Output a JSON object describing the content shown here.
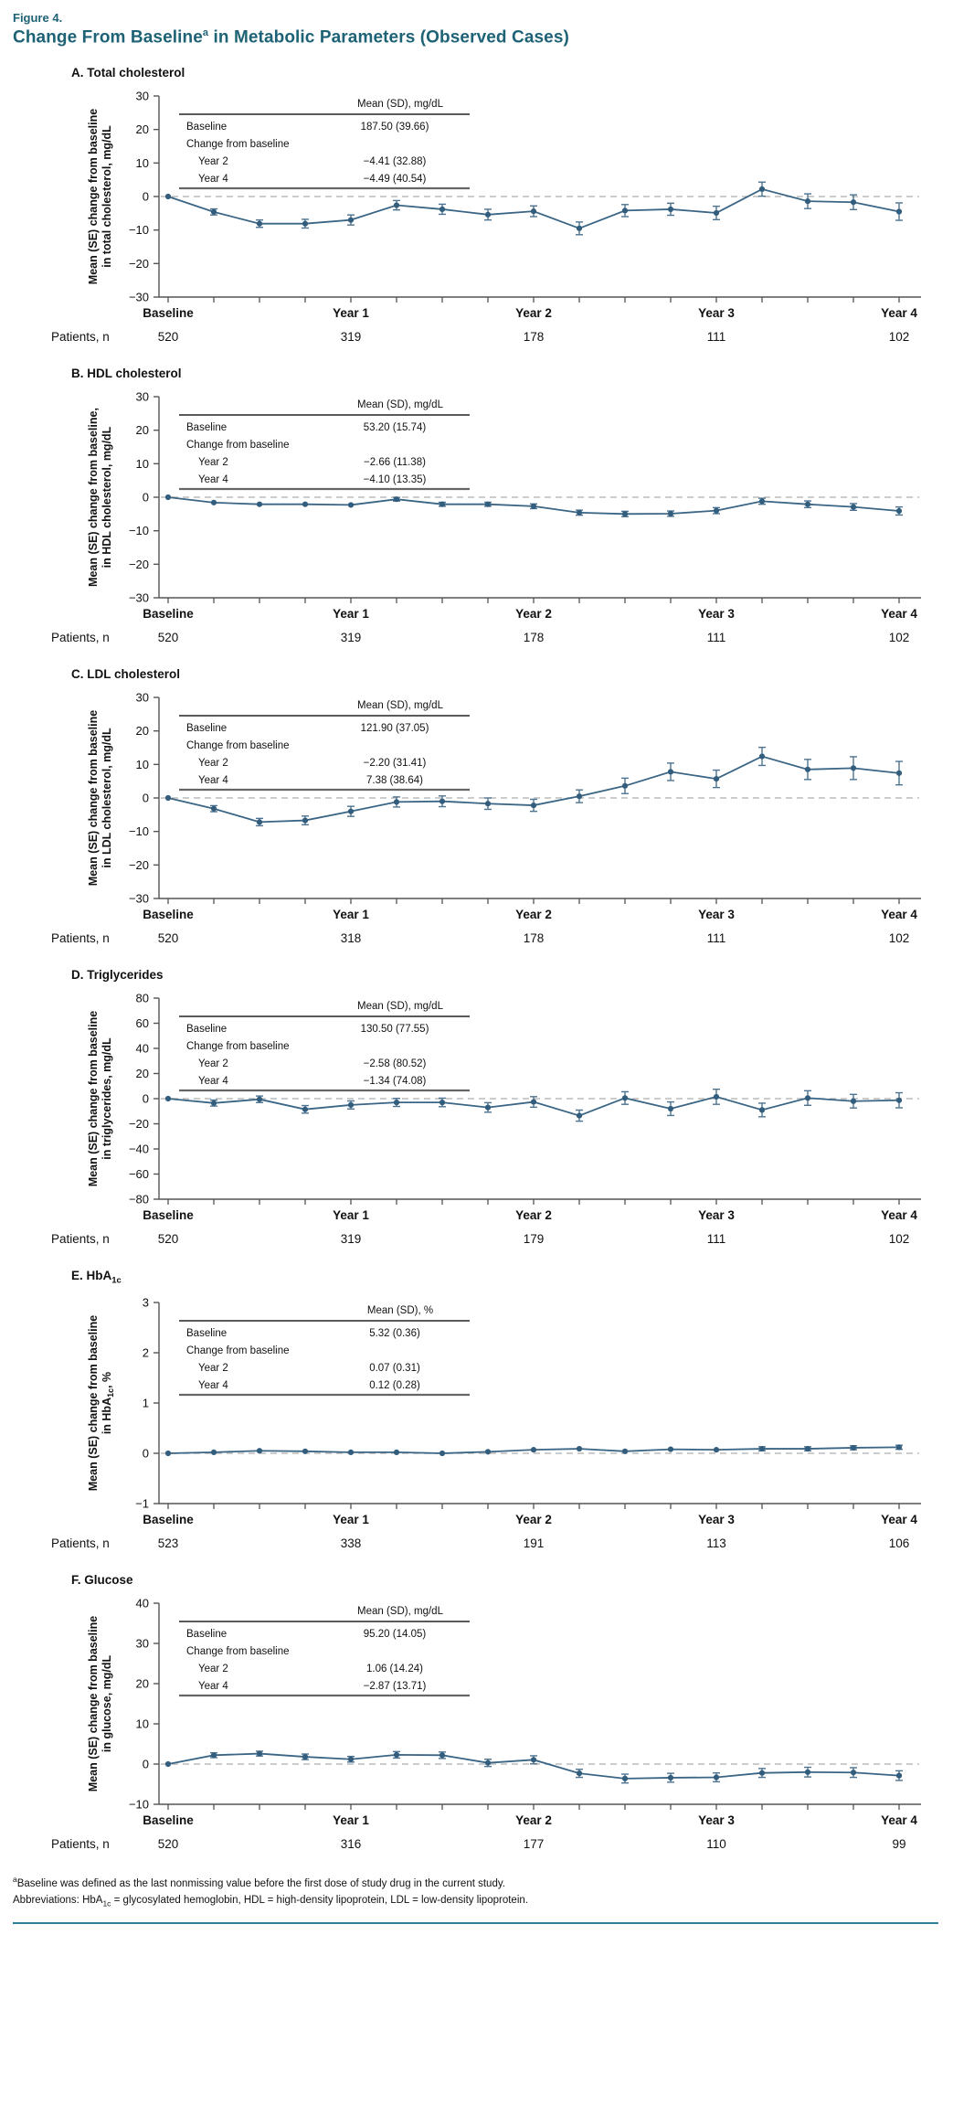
{
  "figure": {
    "label": "Figure 4.",
    "title_prefix": "Change From Baseline",
    "title_sup": "a",
    "title_suffix": " in Metabolic Parameters (Observed Cases)"
  },
  "patients_row_label": "Patients, n",
  "footnotes": {
    "baseline_sup": "a",
    "baseline_text": "Baseline was defined as the last nonmissing value before the first dose of study drug in the current study.",
    "abbreviations": "Abbreviations: HbA1c = glycosylated hemoglobin, HDL = high-density lipoprotein, LDL = low-density lipoprotein."
  },
  "colors": {
    "title_teal": "#1E6275",
    "series_line": "#3A6585",
    "marker": "#335D7D",
    "error_bar": "#4E7390",
    "zero_line": "#BBBBBB",
    "axis": "#555555",
    "bottom_rule": "#2E8099"
  },
  "chart_data": [
    {
      "type": "line",
      "panel_label": "A. Total cholesterol",
      "ylabel_line1": "Mean (SE) change from baseline",
      "ylabel_line2": "in total cholesterol, mg/dL",
      "ylim": [
        -30,
        30
      ],
      "ytick_step": 10,
      "x_tick_labels": [
        "Baseline",
        "Year 1",
        "Year 2",
        "Year 3",
        "Year 4"
      ],
      "quarters_per_year": 4,
      "patients_n": [
        "520",
        "319",
        "178",
        "111",
        "102"
      ],
      "inset": {
        "header": "Mean (SD), mg/dL",
        "rows": [
          [
            "Baseline",
            "187.50 (39.66)"
          ],
          [
            "Change from baseline",
            ""
          ],
          [
            "Year 2",
            "−4.41 (32.88)"
          ],
          [
            "Year 4",
            "−4.49 (40.54)"
          ]
        ],
        "indent_rows": [
          2,
          3
        ]
      },
      "values": [
        0,
        -4.6,
        -8.1,
        -8.1,
        -7.0,
        -2.6,
        -3.8,
        -5.4,
        -4.4,
        -9.5,
        -4.2,
        -3.8,
        -4.9,
        2.2,
        -1.4,
        -1.7,
        -4.5
      ],
      "se": [
        0.2,
        0.9,
        1.1,
        1.3,
        1.5,
        1.4,
        1.5,
        1.6,
        1.6,
        1.9,
        1.8,
        1.8,
        2.0,
        2.1,
        2.2,
        2.2,
        2.6
      ]
    },
    {
      "type": "line",
      "panel_label": "B. HDL cholesterol",
      "ylabel_line1": "Mean (SE) change from baseline,",
      "ylabel_line2": "in HDL cholesterol, mg/dL",
      "ylim": [
        -30,
        30
      ],
      "ytick_step": 10,
      "x_tick_labels": [
        "Baseline",
        "Year 1",
        "Year 2",
        "Year 3",
        "Year 4"
      ],
      "quarters_per_year": 4,
      "patients_n": [
        "520",
        "319",
        "178",
        "111",
        "102"
      ],
      "inset": {
        "header": "Mean (SD), mg/dL",
        "rows": [
          [
            "Baseline",
            "53.20 (15.74)"
          ],
          [
            "Change from baseline",
            ""
          ],
          [
            "Year 2",
            "−2.66 (11.38)"
          ],
          [
            "Year 4",
            "−4.10 (13.35)"
          ]
        ],
        "indent_rows": [
          2,
          3
        ]
      },
      "values": [
        0,
        -1.6,
        -2.1,
        -2.1,
        -2.3,
        -0.6,
        -2.1,
        -2.1,
        -2.7,
        -4.6,
        -5.0,
        -4.9,
        -4.0,
        -1.2,
        -2.1,
        -2.9,
        -4.1
      ],
      "se": [
        0.1,
        0.4,
        0.45,
        0.5,
        0.5,
        0.55,
        0.6,
        0.6,
        0.7,
        0.75,
        0.8,
        0.8,
        0.9,
        0.9,
        1.0,
        1.0,
        1.2
      ]
    },
    {
      "type": "line",
      "panel_label": "C. LDL cholesterol",
      "ylabel_line1": "Mean (SE) change from baseline",
      "ylabel_line2": "in LDL cholesterol, mg/dL",
      "ylim": [
        -30,
        30
      ],
      "ytick_step": 10,
      "x_tick_labels": [
        "Baseline",
        "Year 1",
        "Year 2",
        "Year 3",
        "Year 4"
      ],
      "quarters_per_year": 4,
      "patients_n": [
        "520",
        "318",
        "178",
        "111",
        "102"
      ],
      "inset": {
        "header": "Mean (SD), mg/dL",
        "rows": [
          [
            "Baseline",
            "121.90 (37.05)"
          ],
          [
            "Change from baseline",
            ""
          ],
          [
            "Year 2",
            "−2.20 (31.41)"
          ],
          [
            "Year 4",
            "7.38 (38.64)"
          ]
        ],
        "indent_rows": [
          2,
          3
        ]
      },
      "values": [
        0,
        -3.2,
        -7.2,
        -6.7,
        -4.0,
        -1.2,
        -1.0,
        -1.7,
        -2.2,
        0.5,
        3.6,
        7.8,
        5.7,
        12.4,
        8.5,
        8.9,
        7.4
      ],
      "se": [
        0.2,
        0.9,
        1.1,
        1.3,
        1.5,
        1.5,
        1.6,
        1.7,
        1.8,
        1.9,
        2.3,
        2.6,
        2.6,
        2.7,
        3.0,
        3.4,
        3.5
      ]
    },
    {
      "type": "line",
      "panel_label": "D. Triglycerides",
      "ylabel_line1": "Mean (SE) change from baseline",
      "ylabel_line2": "in triglycerides, mg/dL",
      "ylim": [
        -80,
        80
      ],
      "ytick_step": 20,
      "x_tick_labels": [
        "Baseline",
        "Year 1",
        "Year 2",
        "Year 3",
        "Year 4"
      ],
      "quarters_per_year": 4,
      "patients_n": [
        "520",
        "319",
        "179",
        "111",
        "102"
      ],
      "inset": {
        "header": "Mean (SD), mg/dL",
        "rows": [
          [
            "Baseline",
            "130.50 (77.55)"
          ],
          [
            "Change from baseline",
            ""
          ],
          [
            "Year 2",
            "−2.58 (80.52)"
          ],
          [
            "Year 4",
            "−1.34 (74.08)"
          ]
        ],
        "indent_rows": [
          2,
          3
        ]
      },
      "values": [
        0,
        -3.5,
        -0.5,
        -8.5,
        -5.0,
        -3.0,
        -3.0,
        -7.0,
        -2.6,
        -13.5,
        0.5,
        -8.0,
        1.5,
        -9.0,
        0.5,
        -2.0,
        -1.3
      ],
      "se": [
        1.2,
        2.4,
        2.6,
        3.0,
        3.2,
        3.2,
        3.4,
        3.8,
        4.2,
        4.4,
        5.0,
        5.4,
        6.0,
        5.4,
        5.8,
        5.4,
        6.0
      ]
    },
    {
      "type": "line",
      "panel_label": "E. HbA1c",
      "ylabel_line1": "Mean (SE) change from baseline",
      "ylabel_line2": "in HbA1c, %",
      "ylim": [
        -1,
        3
      ],
      "ytick_step": 1,
      "x_tick_labels": [
        "Baseline",
        "Year 1",
        "Year 2",
        "Year 3",
        "Year 4"
      ],
      "quarters_per_year": 4,
      "patients_n": [
        "523",
        "338",
        "191",
        "113",
        "106"
      ],
      "inset": {
        "header": "Mean (SD), %",
        "rows": [
          [
            "Baseline",
            "5.32 (0.36)"
          ],
          [
            "Change from baseline",
            ""
          ],
          [
            "Year 2",
            "0.07 (0.31)"
          ],
          [
            "Year 4",
            "0.12 (0.28)"
          ]
        ],
        "indent_rows": [
          2,
          3
        ]
      },
      "values": [
        0,
        0.02,
        0.05,
        0.04,
        0.02,
        0.02,
        0.0,
        0.03,
        0.07,
        0.09,
        0.04,
        0.08,
        0.07,
        0.09,
        0.09,
        0.11,
        0.12
      ],
      "se": [
        0.01,
        0.02,
        0.02,
        0.02,
        0.02,
        0.02,
        0.02,
        0.02,
        0.03,
        0.03,
        0.03,
        0.03,
        0.03,
        0.04,
        0.04,
        0.04,
        0.04
      ]
    },
    {
      "type": "line",
      "panel_label": "F. Glucose",
      "ylabel_line1": "Mean (SE) change from baseline",
      "ylabel_line2": "in glucose, mg/dL",
      "ylim": [
        -10,
        40
      ],
      "ytick_step": 10,
      "x_tick_labels": [
        "Baseline",
        "Year 1",
        "Year 2",
        "Year 3",
        "Year 4"
      ],
      "quarters_per_year": 4,
      "patients_n": [
        "520",
        "316",
        "177",
        "110",
        "99"
      ],
      "inset": {
        "header": "Mean (SD), mg/dL",
        "rows": [
          [
            "Baseline",
            "95.20 (14.05)"
          ],
          [
            "Change from baseline",
            ""
          ],
          [
            "Year 2",
            "1.06 (14.24)"
          ],
          [
            "Year 4",
            "−2.87 (13.71)"
          ]
        ],
        "indent_rows": [
          2,
          3
        ]
      },
      "values": [
        0,
        2.2,
        2.6,
        1.8,
        1.2,
        2.3,
        2.2,
        0.3,
        1.06,
        -2.3,
        -3.6,
        -3.4,
        -3.3,
        -2.2,
        -2.0,
        -2.1,
        -2.87
      ],
      "se": [
        0.3,
        0.6,
        0.6,
        0.7,
        0.7,
        0.8,
        0.8,
        0.9,
        1.0,
        1.0,
        1.1,
        1.1,
        1.1,
        1.1,
        1.2,
        1.2,
        1.2
      ]
    }
  ]
}
